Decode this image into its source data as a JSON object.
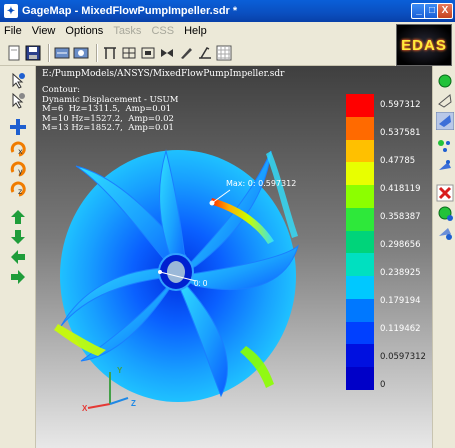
{
  "window": {
    "title": "GageMap - MixedFlowPumpImpeller.sdr *",
    "min_label": "_",
    "max_label": "□",
    "close_label": "X"
  },
  "menu": {
    "file": "File",
    "view": "View",
    "options": "Options",
    "tasks": "Tasks",
    "css": "CSS",
    "help": "Help"
  },
  "logo": {
    "text": "EDAS"
  },
  "viewport": {
    "file_path": "E:/PumpModels/ANSYS/MixedFlowPumpImpeller.sdr",
    "contour_lines": [
      "Contour:",
      "Dynamic Displacement - USUM",
      "M=6  Hz=1311.5,  Amp=0.01",
      "M=10 Hz=1527.2,  Amp=0.02",
      "M=13 Hz=1852.7,  Amp=0.01"
    ],
    "max_label": "Max: 0: 0.597312",
    "hub_label": "0: 0"
  },
  "legend": {
    "colors": [
      "#ff0000",
      "#ff6a00",
      "#ffc000",
      "#e8ff00",
      "#8cff00",
      "#2ee83a",
      "#00d47a",
      "#00e0c0",
      "#00c8ff",
      "#0078ff",
      "#0040ff",
      "#0010e0",
      "#0000c8"
    ],
    "labels": [
      "0.597312",
      "0.537581",
      "0.47785",
      "0.418119",
      "0.358387",
      "0.298656",
      "0.238925",
      "0.179194",
      "0.119462",
      "0.0597312",
      "0"
    ]
  },
  "axes": {
    "x": "X",
    "y": "Y",
    "z": "Z"
  },
  "icons": {
    "toolbar": [
      "new-icon",
      "save-icon",
      "view-icon",
      "view2-icon",
      "mesh-icon",
      "mesh2-icon",
      "frame-icon",
      "bowtie-icon",
      "pen-icon",
      "clear-icon",
      "grid-icon"
    ],
    "left": [
      "select-node-icon",
      "select-icon",
      "translate-icon",
      "rotate-x-icon",
      "rotate-y-icon",
      "rotate-z-icon",
      "move-up-icon",
      "move-down-icon",
      "move-left-icon",
      "move-right-icon"
    ],
    "right": [
      "green-dot-icon",
      "outline-shape-icon",
      "face-shape-icon",
      "node-dots-icon",
      "node-shape-icon",
      "delete-icon",
      "green-node-icon",
      "blue-node-icon"
    ]
  },
  "colors": {
    "titlebar": "#0a4fc0",
    "impeller_base": "#1a8fff"
  }
}
